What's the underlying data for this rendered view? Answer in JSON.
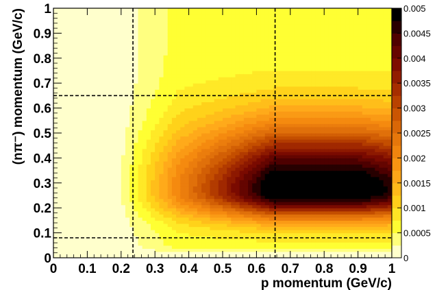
{
  "chart_data": {
    "type": "heatmap",
    "title": "",
    "xlabel": "p momentum (GeV/c)",
    "ylabel": "(nπ⁻) momentum (GeV/c)",
    "xlim": [
      0,
      1
    ],
    "ylim": [
      0,
      1
    ],
    "xticks": [
      "0",
      "0.1",
      "0.2",
      "0.3",
      "0.4",
      "0.5",
      "0.6",
      "0.7",
      "0.8",
      "0.9",
      "1"
    ],
    "yticks": [
      "0",
      "0.1",
      "0.2",
      "0.3",
      "0.4",
      "0.5",
      "0.6",
      "0.7",
      "0.8",
      "0.9",
      "1"
    ],
    "colorbar": {
      "range": [
        0,
        0.005
      ],
      "ticks": [
        "0",
        "0.0005",
        "0.001",
        "0.0015",
        "0.002",
        "0.0025",
        "0.003",
        "0.0035",
        "0.004",
        "0.0045",
        "0.005"
      ],
      "colors": [
        "#ffffcc",
        "#ffff33",
        "#ffd21a",
        "#ffaa1a",
        "#f58a0f",
        "#e0700a",
        "#c44e00",
        "#a02800",
        "#7a0a00",
        "#4d0000",
        "#000000"
      ]
    },
    "peak": {
      "x": 0.72,
      "y": 0.27,
      "value": 0.0049
    },
    "cut_lines": {
      "vertical": [
        0.235,
        0.655
      ],
      "horizontal": [
        0.08,
        0.65
      ],
      "style": "dashed"
    }
  }
}
